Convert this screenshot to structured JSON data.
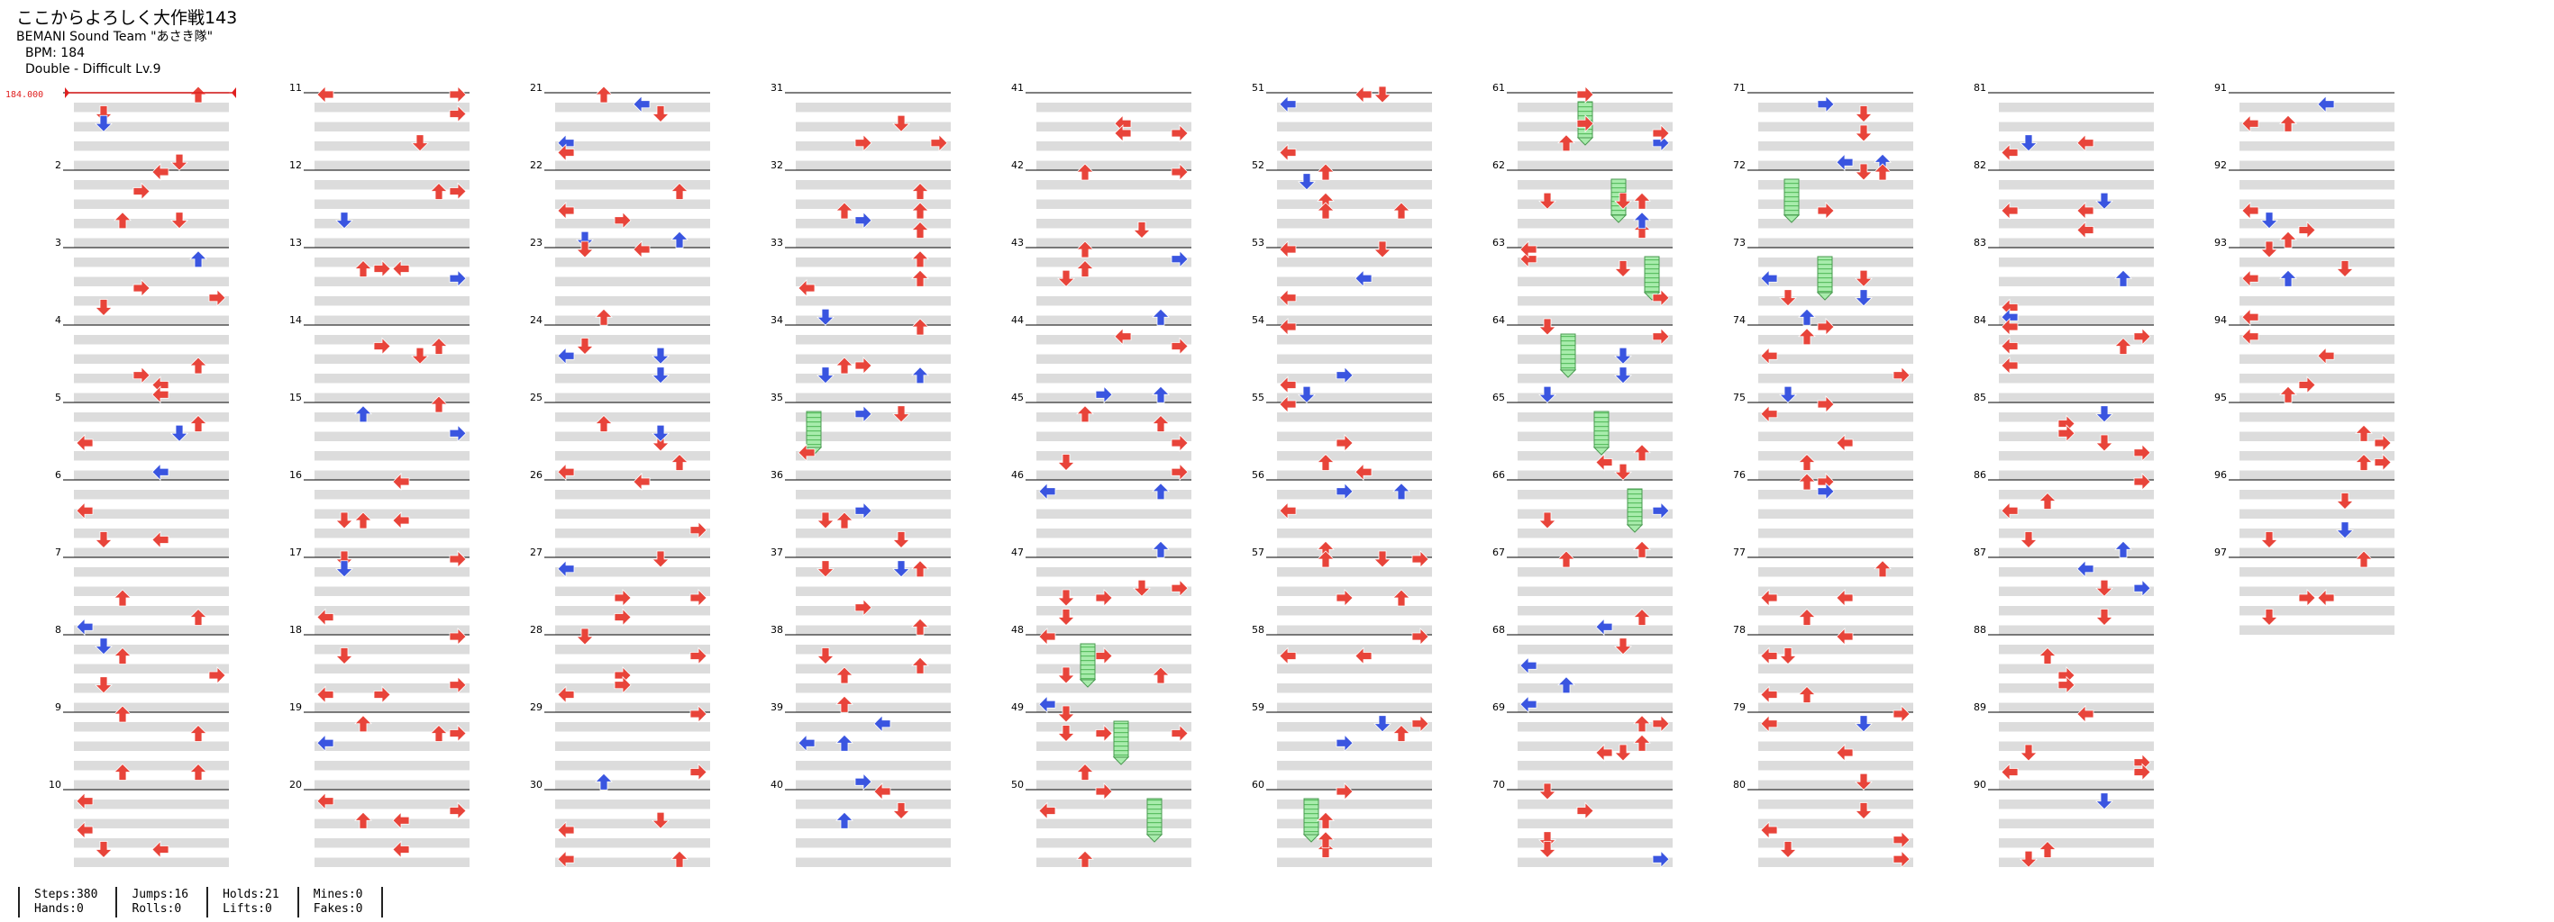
{
  "song": {
    "title": "ここからよろしく大作戦143",
    "artist": "BEMANI Sound Team \"あさき隊\"",
    "bpm_label": "BPM: 184",
    "chart_info": "Double - Difficult  Lv.9"
  },
  "bpm_marker": "184.000",
  "measures": {
    "count": 97,
    "labels": [
      "2",
      "3",
      "4",
      "5",
      "6",
      "7",
      "8",
      "9",
      "10",
      "11",
      "12",
      "13",
      "14",
      "15",
      "16",
      "17",
      "18",
      "19",
      "20",
      "21",
      "22",
      "23",
      "24",
      "25",
      "26",
      "27",
      "28",
      "29",
      "30",
      "31",
      "32",
      "33",
      "34",
      "35",
      "36",
      "37",
      "38",
      "39",
      "40",
      "41",
      "42",
      "43",
      "44",
      "45",
      "46",
      "47",
      "48",
      "49",
      "50",
      "51",
      "52",
      "53",
      "54",
      "55",
      "56",
      "57",
      "58",
      "59",
      "60",
      "61",
      "62",
      "63",
      "64",
      "65",
      "66",
      "67",
      "68",
      "69",
      "70",
      "71",
      "72",
      "73",
      "74",
      "75",
      "76",
      "77",
      "78",
      "79",
      "80",
      "81",
      "82",
      "83",
      "84",
      "85",
      "86",
      "87",
      "88",
      "89",
      "90",
      "91",
      "92",
      "93",
      "94",
      "95",
      "96",
      "97"
    ]
  },
  "colors": {
    "quarter_arrow": "#e8443a",
    "eighth_arrow": "#3a55e0",
    "hold_body": "#9be89b",
    "row_shade": "#dcdcdc",
    "bpm_line": "#e02020"
  },
  "stats": {
    "steps": "Steps:380",
    "hands": "Hands:0",
    "jumps": "Jumps:16",
    "rolls": "Rolls:0",
    "holds": "Holds:21",
    "lifts": "Lifts:0",
    "mines": "Mines:0",
    "fakes": "Fakes:0"
  }
}
